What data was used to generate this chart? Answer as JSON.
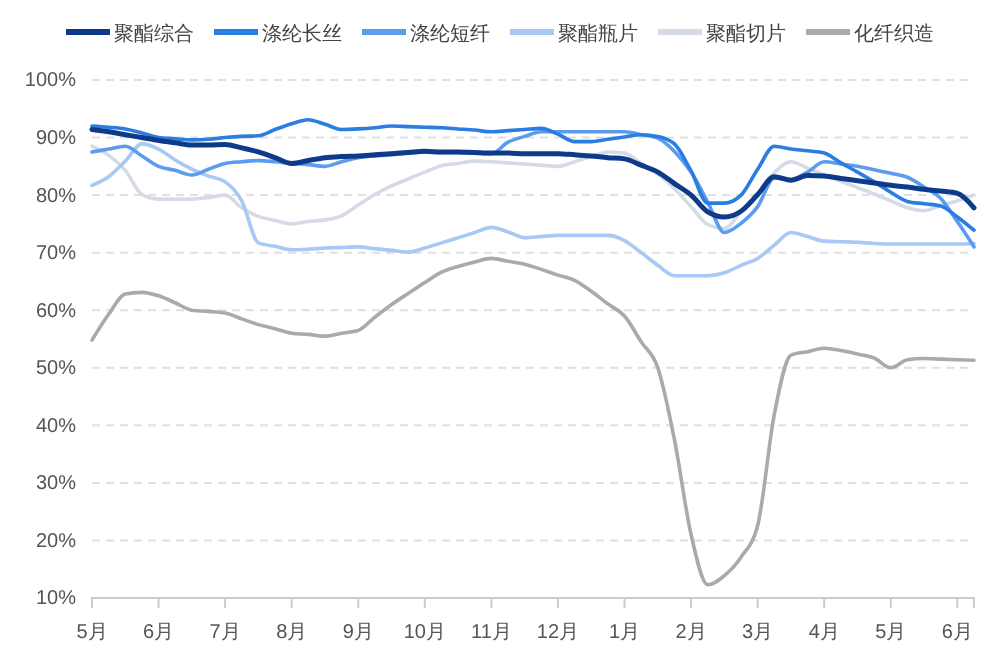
{
  "chart_data": {
    "type": "line",
    "legend": "top",
    "grid": "y",
    "marker": "none",
    "line_style": "solid",
    "categories": [
      "5月",
      null,
      null,
      null,
      "6月",
      null,
      null,
      null,
      "7月",
      null,
      null,
      null,
      "8月",
      null,
      null,
      null,
      "9月",
      null,
      null,
      null,
      "10月",
      null,
      null,
      null,
      "11月",
      null,
      null,
      null,
      "12月",
      null,
      null,
      null,
      "1月",
      null,
      null,
      null,
      "2月",
      null,
      null,
      null,
      "3月",
      null,
      null,
      null,
      "4月",
      null,
      null,
      null,
      "5月",
      null,
      null,
      null,
      "6月",
      null
    ],
    "ylim": [
      10,
      100
    ],
    "yticks": [
      {
        "value": 10,
        "label": "10%"
      },
      {
        "value": 20,
        "label": "20%"
      },
      {
        "value": 30,
        "label": "30%"
      },
      {
        "value": 40,
        "label": "40%"
      },
      {
        "value": 50,
        "label": "50%"
      },
      {
        "value": 60,
        "label": "60%"
      },
      {
        "value": 70,
        "label": "70%"
      },
      {
        "value": 80,
        "label": "80%"
      },
      {
        "value": 90,
        "label": "90%"
      },
      {
        "value": 100,
        "label": "100%"
      }
    ],
    "series": [
      {
        "name": "聚酯综合",
        "color": "#0d3a8a",
        "values": [
          91.4,
          91,
          90.5,
          90,
          89.5,
          89.1,
          88.7,
          88.7,
          88.8,
          88.2,
          87.5,
          86.5,
          85.5,
          86,
          86.5,
          86.7,
          86.8,
          87,
          87.2,
          87.4,
          87.6,
          87.5,
          87.5,
          87.4,
          87.3,
          87.3,
          87.2,
          87.2,
          87.2,
          87,
          86.8,
          86.5,
          86.3,
          85.2,
          84,
          82,
          80,
          77.1,
          76.2,
          77.2,
          80.1,
          83.2,
          82.6,
          83.4,
          83.3,
          82.9,
          82.5,
          82.1,
          81.7,
          81.4,
          81,
          80.7,
          80.3,
          77.8
        ]
      },
      {
        "name": "涤纶长丝",
        "color": "#2a7de1",
        "values": [
          92,
          91.8,
          91.5,
          90.8,
          90,
          89.8,
          89.6,
          89.7,
          90,
          90.2,
          90.3,
          91.4,
          92.4,
          93.1,
          92.3,
          91.4,
          91.5,
          91.7,
          92,
          91.9,
          91.8,
          91.7,
          91.5,
          91.3,
          91,
          91.2,
          91.4,
          91.6,
          90.6,
          89.3,
          89.3,
          89.7,
          90.1,
          90.5,
          90.2,
          88.9,
          84.2,
          78.6,
          78.6,
          80,
          84.5,
          88.5,
          88,
          87.7,
          87.3,
          85.6,
          84,
          82.3,
          80.5,
          78.9,
          78.5,
          78.1,
          76.2,
          73.9
        ]
      },
      {
        "name": "涤纶短纤",
        "color": "#5b9cf0",
        "values": [
          87.5,
          88,
          88.5,
          86.8,
          85,
          84.3,
          83.5,
          84.5,
          85.5,
          85.8,
          86,
          85.8,
          85.5,
          85.3,
          85,
          85.8,
          86.5,
          86.8,
          87,
          87.3,
          87.5,
          87.4,
          87.4,
          87.3,
          87.2,
          89.2,
          90.2,
          91,
          91,
          91,
          91,
          91,
          91,
          90.5,
          89.9,
          87.6,
          84,
          78.8,
          73.5,
          75.1,
          78,
          83,
          82.7,
          84,
          85.8,
          85.4,
          85,
          84.4,
          83.8,
          83.1,
          81.4,
          79.4,
          75.4,
          71
        ]
      },
      {
        "name": "聚酯瓶片",
        "color": "#a8c8f5",
        "values": [
          81.7,
          83.2,
          85.9,
          88.9,
          88,
          86.1,
          84.5,
          83.3,
          82.3,
          79,
          71.7,
          71.1,
          70.5,
          70.6,
          70.8,
          70.9,
          71,
          70.7,
          70.4,
          70.1,
          70.8,
          71.7,
          72.6,
          73.5,
          74.4,
          73.6,
          72.6,
          72.8,
          73,
          73,
          73,
          73,
          72.1,
          70,
          67.8,
          66,
          66,
          66,
          66.5,
          67.8,
          69,
          71.3,
          73.5,
          72.8,
          72,
          71.9,
          71.8,
          71.6,
          71.5,
          71.5,
          71.5,
          71.5,
          71.5,
          71.6
        ]
      },
      {
        "name": "聚酯切片",
        "color": "#d5dbe6",
        "values": [
          88.5,
          86.9,
          84.3,
          80.1,
          79.3,
          79.3,
          79.3,
          79.6,
          80,
          77.8,
          76.3,
          75.6,
          75,
          75.4,
          75.7,
          76.4,
          78.3,
          80.1,
          81.6,
          82.8,
          84,
          85.1,
          85.5,
          85.9,
          85.8,
          85.6,
          85.4,
          85.2,
          85,
          85.8,
          86.7,
          87.5,
          87.3,
          85.5,
          83.7,
          81.1,
          78,
          74.9,
          74.2,
          77.1,
          80,
          83.9,
          85.8,
          84.7,
          83.5,
          82.4,
          81.3,
          80.2,
          79,
          77.8,
          77.3,
          78.2,
          79,
          80
        ]
      },
      {
        "name": "化纤织造",
        "color": "#aaaaaa",
        "values": [
          54.8,
          59.3,
          62.8,
          63.1,
          62.5,
          61.3,
          60,
          59.8,
          59.5,
          58.5,
          57.5,
          56.8,
          56,
          55.8,
          55.5,
          56,
          56.5,
          58.8,
          61,
          62.9,
          64.8,
          66.6,
          67.6,
          68.4,
          69,
          68.5,
          68,
          67.1,
          66.1,
          65.2,
          63.3,
          61.1,
          59,
          54.5,
          50,
          37.5,
          21,
          12.3,
          13.9,
          17.1,
          22.6,
          41.9,
          52.2,
          52.8,
          53.4,
          53,
          52.4,
          51.7,
          50,
          51.4,
          51.6,
          51.5,
          51.4,
          51.3
        ]
      }
    ]
  }
}
